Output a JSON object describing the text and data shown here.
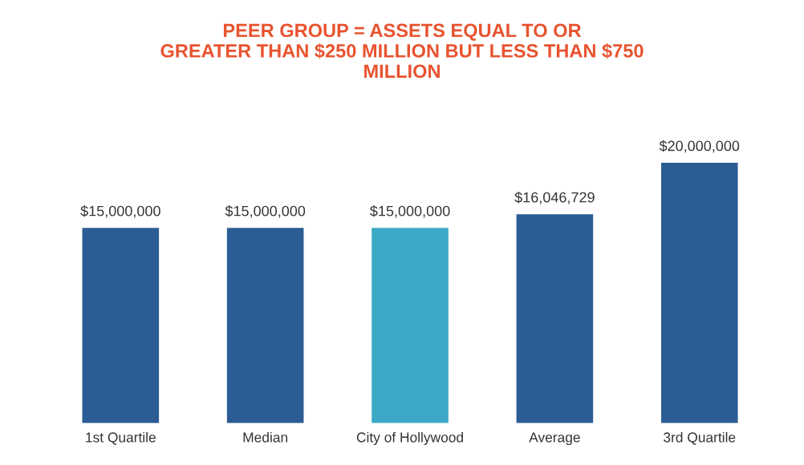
{
  "chart_data": {
    "type": "bar",
    "title": "PEER GROUP = ASSETS EQUAL TO OR\nGREATER THAN $250 MILLION BUT LESS THAN $750\nMILLION",
    "categories": [
      "1st Quartile",
      "Median",
      "City of Hollywood",
      "Average",
      "3rd Quartile"
    ],
    "values": [
      15000000,
      15000000,
      15000000,
      16046729,
      20000000
    ],
    "value_labels": [
      "$15,000,000",
      "$15,000,000",
      "$15,000,000",
      "$16,046,729",
      "$20,000,000"
    ],
    "colors": [
      "#2b5c93",
      "#2b5c93",
      "#3ba9c6",
      "#2b5c93",
      "#2b5c93"
    ],
    "grid": false,
    "legend": false
  }
}
